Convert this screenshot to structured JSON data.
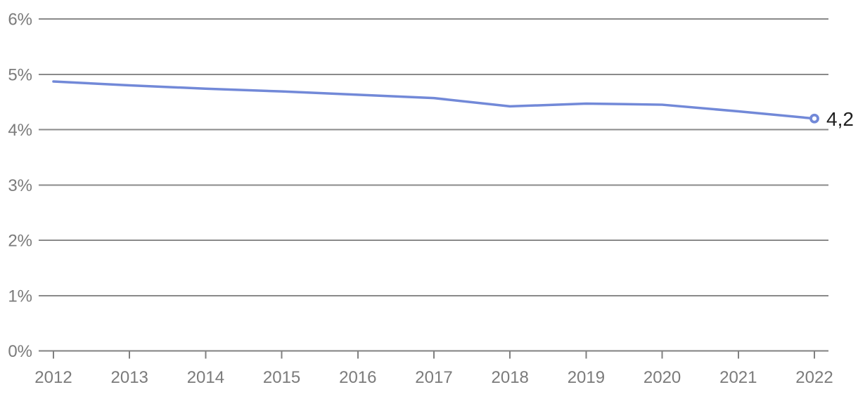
{
  "chart_data": {
    "type": "line",
    "x": [
      "2012",
      "2013",
      "2014",
      "2015",
      "2016",
      "2017",
      "2018",
      "2019",
      "2020",
      "2021",
      "2022"
    ],
    "series": [
      {
        "name": "rate-percent",
        "values": [
          4.87,
          4.8,
          4.74,
          4.69,
          4.63,
          4.57,
          4.42,
          4.47,
          4.45,
          4.33,
          4.2
        ]
      }
    ],
    "end_label": "4,2",
    "y_ticks": [
      "0%",
      "1%",
      "2%",
      "3%",
      "4%",
      "5%",
      "6%"
    ],
    "ylim": [
      0,
      6
    ],
    "grid": "horizontal",
    "legend": "none",
    "marker": "open-circle-at-last-point",
    "colors": {
      "line": "#7289d8",
      "marker_fill": "#ffffff",
      "gridline": "#8a8a8a",
      "axis": "#808080",
      "tick_label": "#7b7b7b",
      "end_label": "#1f1f1f",
      "background": "#ffffff"
    }
  }
}
